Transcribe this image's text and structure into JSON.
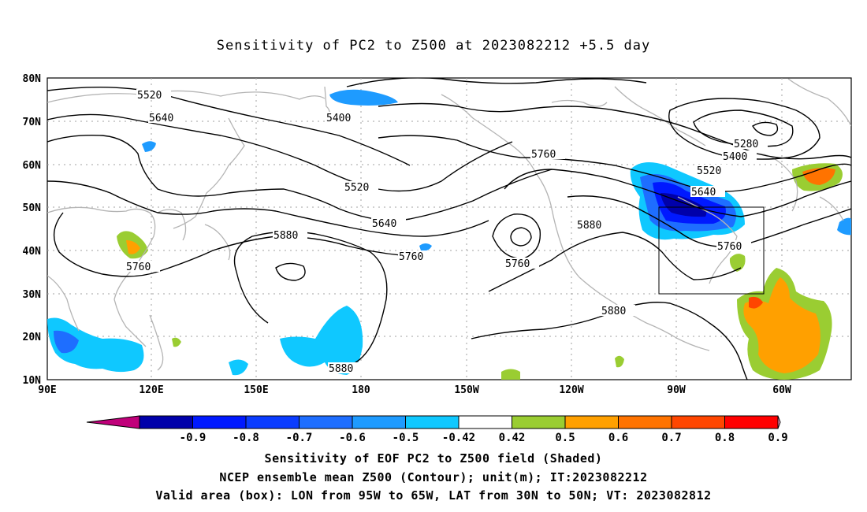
{
  "title": "Sensitivity of PC2 to Z500 at 2023082212 +5.5 day",
  "lat_labels": [
    "80N",
    "70N",
    "60N",
    "50N",
    "40N",
    "30N",
    "20N",
    "10N"
  ],
  "lon_labels": [
    "90E",
    "120E",
    "150E",
    "180",
    "150W",
    "120W",
    "90W",
    "60W"
  ],
  "contour_labels": {
    "c5520a": "5520",
    "c5640a": "5640",
    "c5400a": "5400",
    "c5520b": "5520",
    "c5640b": "5640",
    "c5760a": "5760",
    "c5760b": "5760",
    "c5880a": "5880",
    "c5760c": "5760",
    "c5880b": "5880",
    "c5280": "5280",
    "c5400b": "5400",
    "c5520c": "5520",
    "c5640c": "5640",
    "c5760d": "5760",
    "c5880c": "5880",
    "c5880d": "5880",
    "c5760e": "5760"
  },
  "colorbar": {
    "labels": [
      "-0.9",
      "-0.8",
      "-0.7",
      "-0.6",
      "-0.5",
      "-0.42",
      "0.42",
      "0.5",
      "0.6",
      "0.7",
      "0.8",
      "0.9"
    ],
    "colors": [
      "#0000aa",
      "#0019ff",
      "#0a3cff",
      "#1e6eff",
      "#1e9bff",
      "#0fc8ff",
      "#ffffff",
      "#9acd32",
      "#ffa000",
      "#ff7300",
      "#ff4600",
      "#ff0000"
    ],
    "low_extend_color": "#c0007a",
    "high_extend_color": "#ff9ec8"
  },
  "captions": {
    "line1": "Sensitivity of EOF PC2 to Z500 field (Shaded)",
    "line2": "NCEP ensemble mean Z500 (Contour); unit(m); IT:2023082212",
    "line3": "Valid area (box): LON from 95W to 65W, LAT from 30N to 50N; VT: 2023082812"
  }
}
